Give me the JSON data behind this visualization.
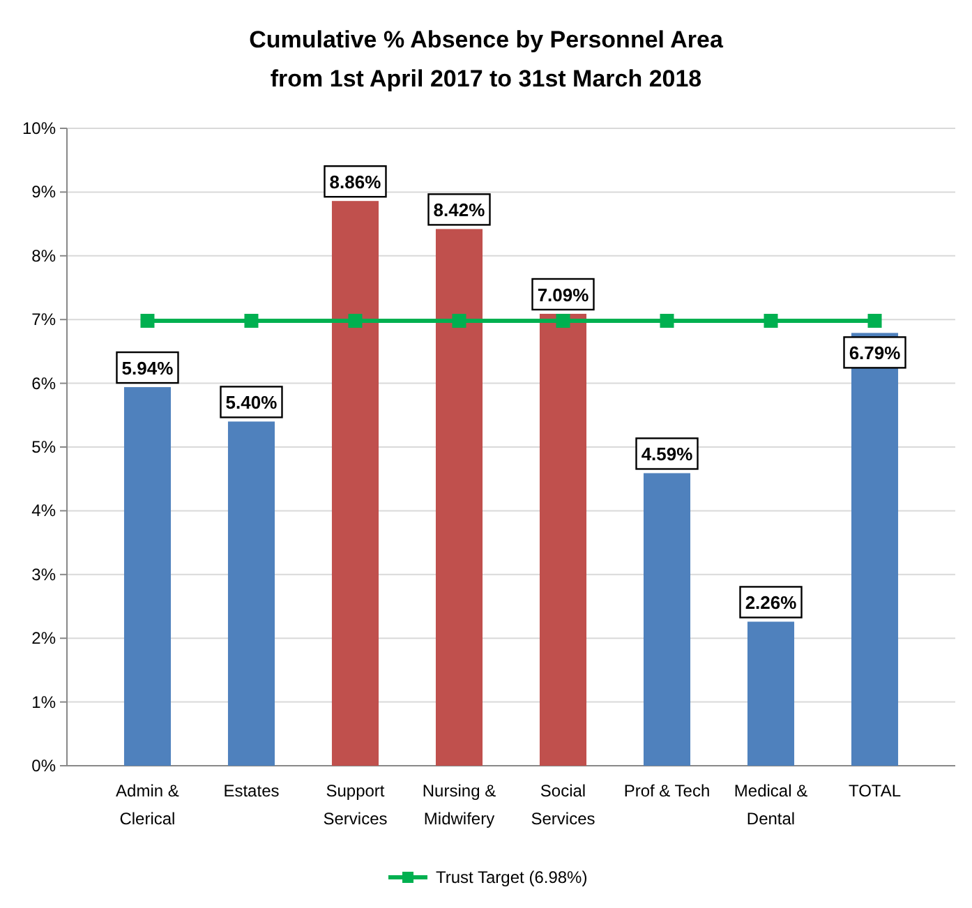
{
  "chart_data": {
    "type": "bar",
    "title": "Cumulative % Absence by Personnel Area",
    "subtitle": "from 1st April 2017 to 31st March 2018",
    "categories": [
      "Admin & Clerical",
      "Estates",
      "Support Services",
      "Nursing & Midwifery",
      "Social Services",
      "Prof & Tech",
      "Medical & Dental",
      "TOTAL"
    ],
    "series": [
      {
        "colors": [
          "#4f81bd",
          "#4f81bd",
          "#c0504d",
          "#c0504d",
          "#c0504d",
          "#4f81bd",
          "#4f81bd",
          "#4f81bd"
        ],
        "values": [
          5.94,
          5.4,
          8.86,
          8.42,
          7.09,
          4.59,
          2.26,
          6.79
        ],
        "value_labels": [
          "5.94%",
          "5.40%",
          "8.86%",
          "8.42%",
          "7.09%",
          "4.59%",
          "2.26%",
          "6.79%"
        ]
      },
      {
        "type": "line",
        "name": "Trust Target (6.98%)",
        "color": "#00b050",
        "values": [
          6.98,
          6.98,
          6.98,
          6.98,
          6.98,
          6.98,
          6.98,
          6.98
        ],
        "marker": "square",
        "line_style": "solid"
      }
    ],
    "ylim": [
      0,
      10
    ],
    "yticks": [
      {
        "value": 0,
        "label": "0%"
      },
      {
        "value": 1,
        "label": "1%"
      },
      {
        "value": 2,
        "label": "2%"
      },
      {
        "value": 3,
        "label": "3%"
      },
      {
        "value": 4,
        "label": "4%"
      },
      {
        "value": 5,
        "label": "5%"
      },
      {
        "value": 6,
        "label": "6%"
      },
      {
        "value": 7,
        "label": "7%"
      },
      {
        "value": 8,
        "label": "8%"
      },
      {
        "value": 9,
        "label": "9%"
      },
      {
        "value": 10,
        "label": "10%"
      }
    ],
    "grid": "y",
    "legend": "bottom"
  }
}
